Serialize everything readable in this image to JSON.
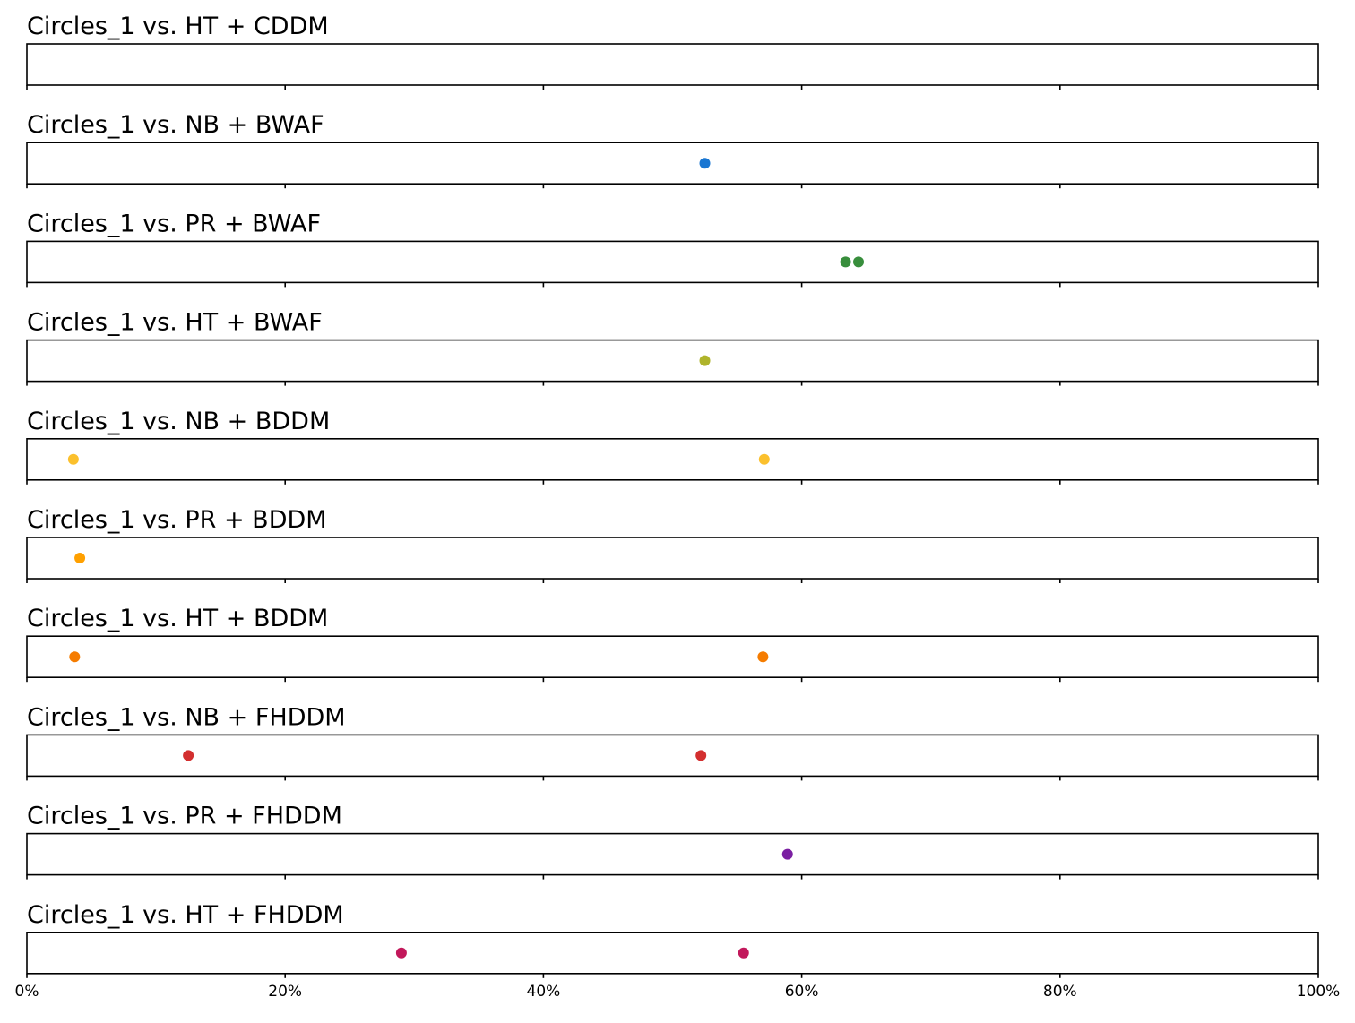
{
  "chart_data": {
    "type": "scatter",
    "x_axis": {
      "xlim": [
        0,
        100
      ],
      "ticks": [
        0,
        20,
        40,
        60,
        80,
        100
      ],
      "tick_labels": [
        "0%",
        "20%",
        "40%",
        "60%",
        "80%",
        "100%"
      ]
    },
    "grid": false,
    "panels": [
      {
        "title": "Circles_1 vs. HT + CDDM",
        "color": "#1f77b4",
        "x": []
      },
      {
        "title": "Circles_1 vs. NB + BWAF",
        "color": "#1976d2",
        "x": [
          52.5
        ]
      },
      {
        "title": "Circles_1 vs. PR + BWAF",
        "color": "#388e3c",
        "x": [
          63.4,
          64.4
        ]
      },
      {
        "title": "Circles_1 vs. HT + BWAF",
        "color": "#afb42b",
        "x": [
          52.5
        ]
      },
      {
        "title": "Circles_1 vs. NB + BDDM",
        "color": "#fbc02d",
        "x": [
          3.6,
          57.1
        ]
      },
      {
        "title": "Circles_1 vs. PR + BDDM",
        "color": "#ffa000",
        "x": [
          4.1
        ]
      },
      {
        "title": "Circles_1 vs. HT + BDDM",
        "color": "#f57c00",
        "x": [
          3.7,
          57.0
        ]
      },
      {
        "title": "Circles_1 vs. NB + FHDDM",
        "color": "#d32f2f",
        "x": [
          12.5,
          52.2
        ]
      },
      {
        "title": "Circles_1 vs. PR + FHDDM",
        "color": "#7b1fa2",
        "x": [
          58.9
        ]
      },
      {
        "title": "Circles_1 vs. HT + FHDDM",
        "color": "#c2185b",
        "x": [
          29.0,
          55.5
        ]
      }
    ]
  }
}
